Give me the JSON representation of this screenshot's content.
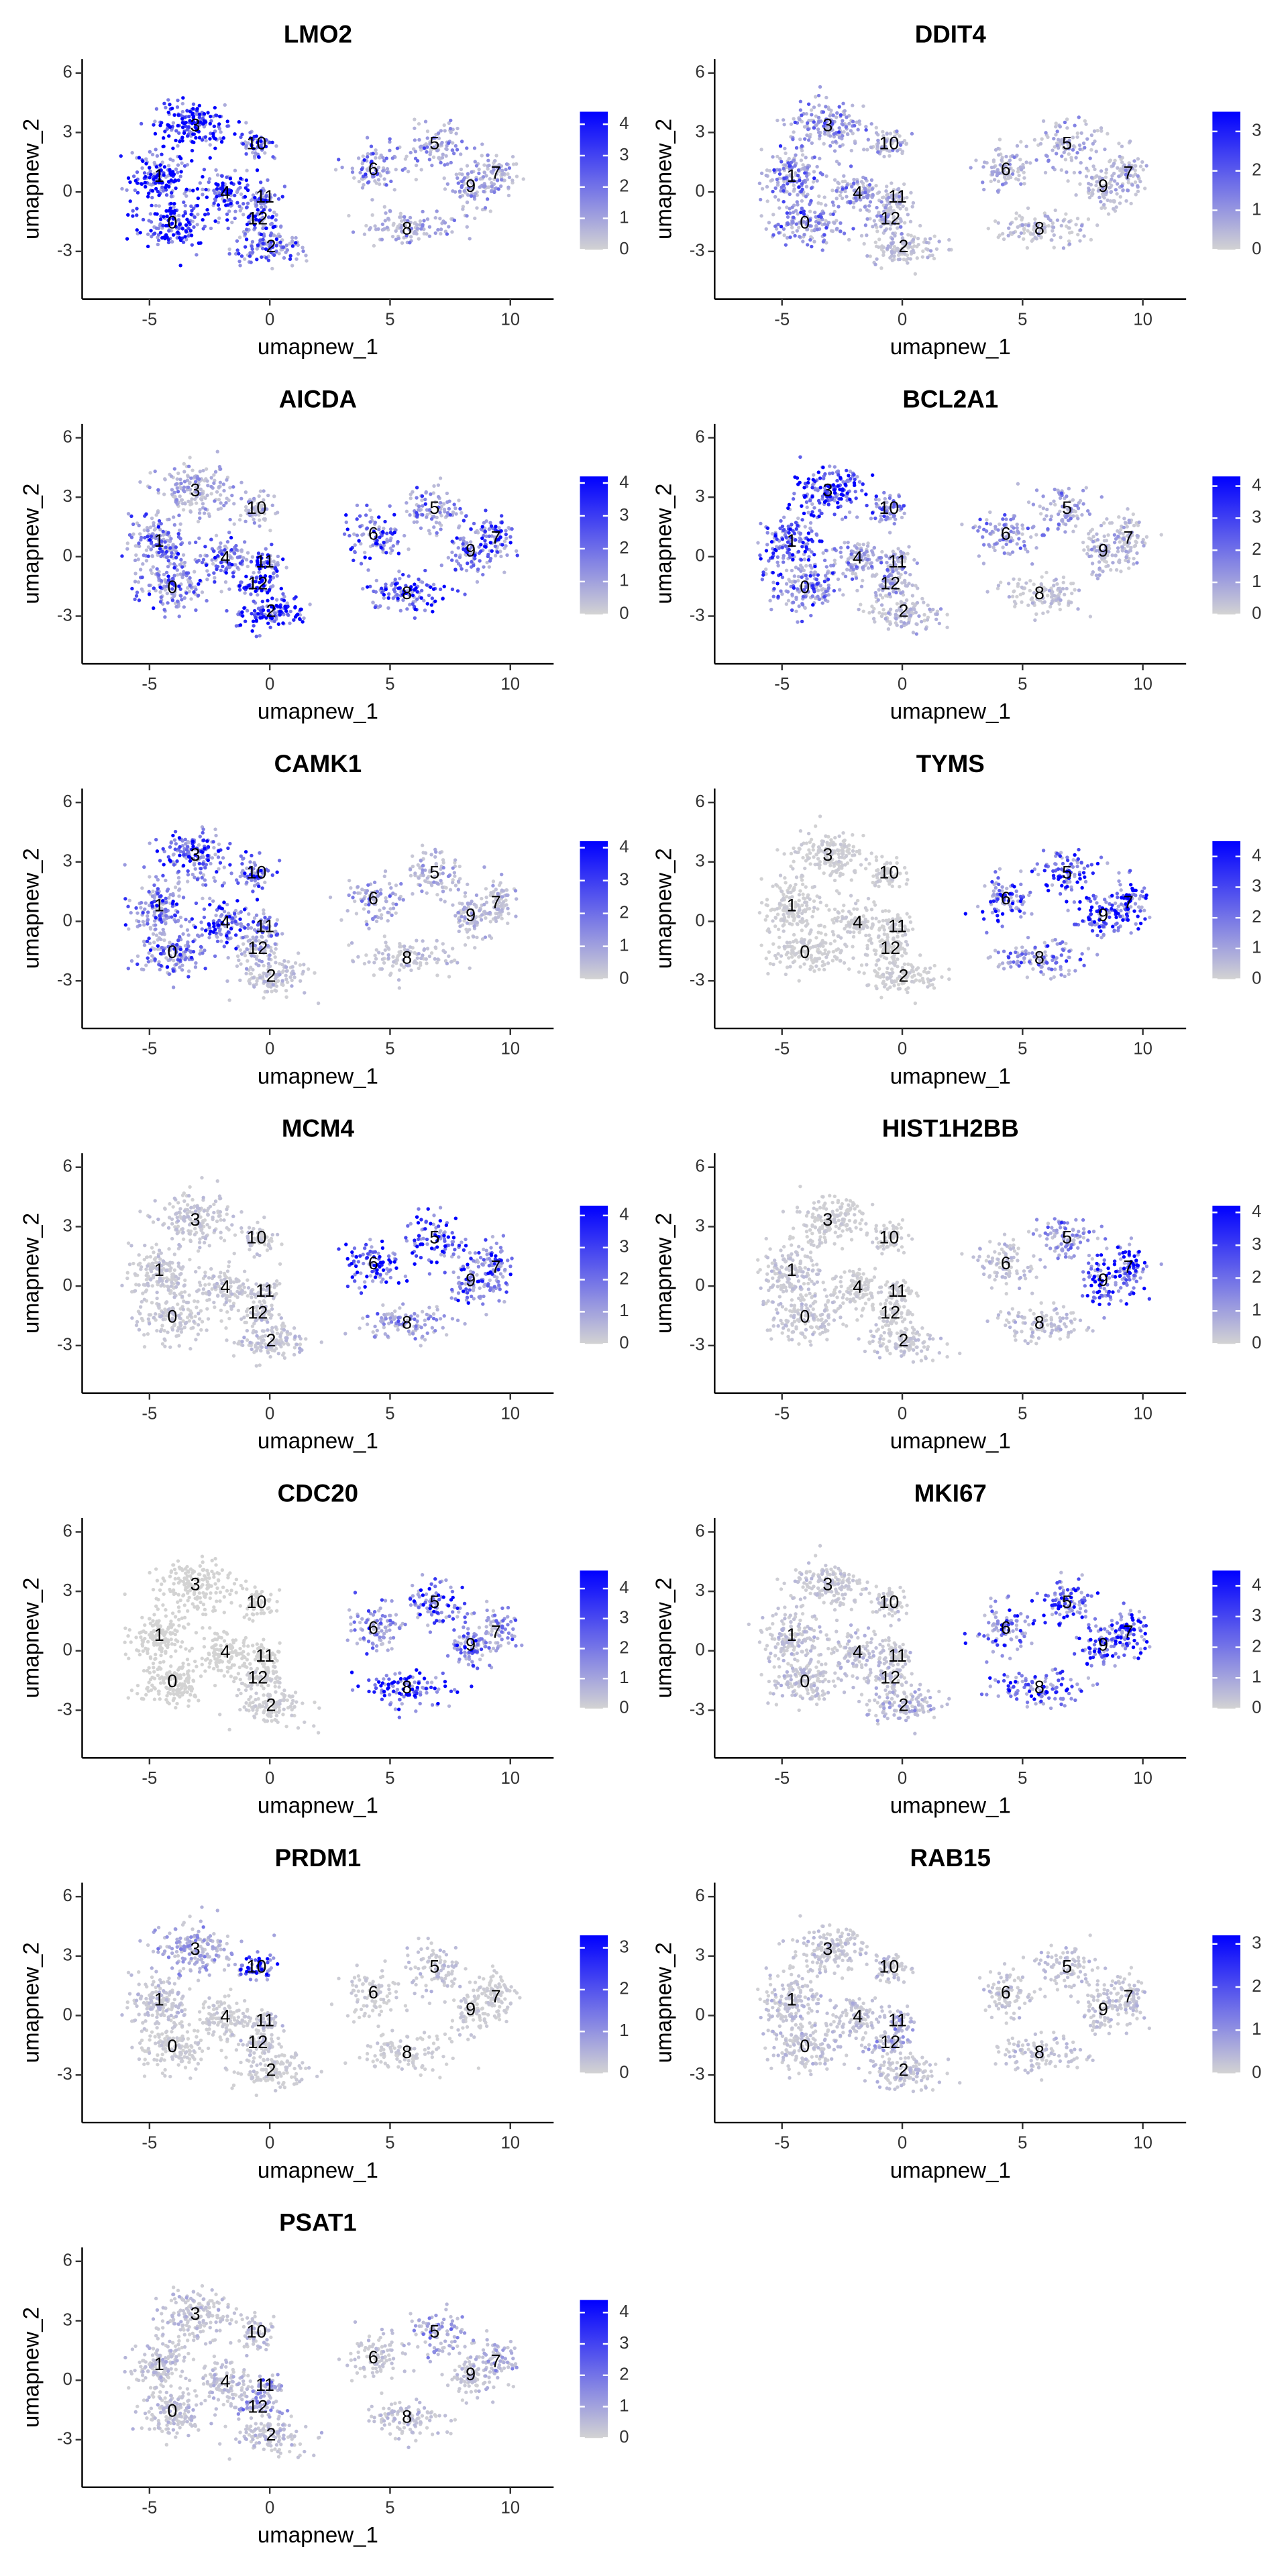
{
  "chart_data": [
    {
      "type": "scatter",
      "title": "LMO2",
      "xlabel": "umapnew_1",
      "ylabel": "umapnew_2",
      "xlim": [
        -7.8,
        11.8
      ],
      "ylim": [
        -5.4,
        6.7
      ],
      "xticks": [
        -5,
        0,
        5,
        10
      ],
      "yticks": [
        -3,
        0,
        3,
        6
      ],
      "point_labels": [
        "0",
        "1",
        "2",
        "3",
        "4",
        "5",
        "6",
        "7",
        "8",
        "9",
        "10",
        "11",
        "12"
      ],
      "x": [
        -4.05,
        -4.6,
        0.05,
        -3.1,
        -1.85,
        6.85,
        4.3,
        9.4,
        5.7,
        8.35,
        -0.55,
        -0.2,
        -0.5
      ],
      "y": [
        -1.6,
        0.75,
        -2.8,
        3.3,
        -0.1,
        2.4,
        1.1,
        0.9,
        -1.9,
        0.25,
        2.4,
        -0.3,
        -1.4
      ],
      "values": [
        3.5,
        3.5,
        1.5,
        4,
        3,
        1,
        1.2,
        0.8,
        0.8,
        0.8,
        2.5,
        2,
        2
      ],
      "colorbar": {
        "lim": [
          0,
          4.4
        ],
        "ticks": [
          0,
          1,
          2,
          3,
          4
        ],
        "colors": [
          "#d3d3d3",
          "#0000ff"
        ]
      }
    },
    {
      "type": "scatter",
      "title": "DDIT4",
      "xlabel": "umapnew_1",
      "ylabel": "umapnew_2",
      "xlim": [
        -7.8,
        11.8
      ],
      "ylim": [
        -5.4,
        6.7
      ],
      "xticks": [
        -5,
        0,
        5,
        10
      ],
      "yticks": [
        -3,
        0,
        3,
        6
      ],
      "point_labels": [
        "0",
        "1",
        "2",
        "3",
        "4",
        "5",
        "6",
        "7",
        "8",
        "9",
        "10",
        "11",
        "12"
      ],
      "x": [
        -4.05,
        -4.6,
        0.05,
        -3.1,
        -1.85,
        6.85,
        4.3,
        9.4,
        5.7,
        8.35,
        -0.55,
        -0.2,
        -0.5
      ],
      "y": [
        -1.6,
        0.75,
        -2.8,
        3.3,
        -0.1,
        2.4,
        1.1,
        0.9,
        -1.9,
        0.25,
        2.4,
        -0.3,
        -1.4
      ],
      "values": [
        1,
        1,
        0.3,
        0.8,
        0.7,
        0.5,
        0.5,
        0.5,
        0.3,
        0.4,
        0.5,
        0.5,
        0.5
      ],
      "colorbar": {
        "lim": [
          0,
          3.5
        ],
        "ticks": [
          0,
          1,
          2,
          3
        ],
        "colors": [
          "#d3d3d3",
          "#0000ff"
        ]
      }
    },
    {
      "type": "scatter",
      "title": "AICDA",
      "xlabel": "umapnew_1",
      "ylabel": "umapnew_2",
      "xlim": [
        -7.8,
        11.8
      ],
      "ylim": [
        -5.4,
        6.7
      ],
      "xticks": [
        -5,
        0,
        5,
        10
      ],
      "yticks": [
        -3,
        0,
        3,
        6
      ],
      "point_labels": [
        "0",
        "1",
        "2",
        "3",
        "4",
        "5",
        "6",
        "7",
        "8",
        "9",
        "10",
        "11",
        "12"
      ],
      "x": [
        -4.05,
        -4.6,
        0.05,
        -3.1,
        -1.85,
        6.85,
        4.3,
        9.4,
        5.7,
        8.35,
        -0.55,
        -0.2,
        -0.5
      ],
      "y": [
        -1.6,
        0.75,
        -2.8,
        3.3,
        -0.1,
        2.4,
        1.1,
        0.9,
        -1.9,
        0.25,
        2.4,
        -0.3,
        -1.4
      ],
      "values": [
        1.5,
        1.5,
        3.5,
        0.6,
        1.5,
        1.2,
        2,
        2,
        3,
        2,
        0.5,
        2.5,
        3
      ],
      "colorbar": {
        "lim": [
          0,
          4.2
        ],
        "ticks": [
          0,
          1,
          2,
          3,
          4
        ],
        "colors": [
          "#d3d3d3",
          "#0000ff"
        ]
      }
    },
    {
      "type": "scatter",
      "title": "BCL2A1",
      "xlabel": "umapnew_1",
      "ylabel": "umapnew_2",
      "xlim": [
        -7.8,
        11.8
      ],
      "ylim": [
        -5.4,
        6.7
      ],
      "xticks": [
        -5,
        0,
        5,
        10
      ],
      "yticks": [
        -3,
        0,
        3,
        6
      ],
      "point_labels": [
        "0",
        "1",
        "2",
        "3",
        "4",
        "5",
        "6",
        "7",
        "8",
        "9",
        "10",
        "11",
        "12"
      ],
      "x": [
        -4.05,
        -4.6,
        0.05,
        -3.1,
        -1.85,
        6.85,
        4.3,
        9.4,
        5.7,
        8.35,
        -0.55,
        -0.2,
        -0.5
      ],
      "y": [
        -1.6,
        0.75,
        -2.8,
        3.3,
        -0.1,
        2.4,
        1.1,
        0.9,
        -1.9,
        0.25,
        2.4,
        -0.3,
        -1.4
      ],
      "values": [
        1.5,
        2,
        0.4,
        3.5,
        1,
        0.8,
        1,
        0.5,
        0.3,
        0.5,
        1.5,
        0.8,
        0.8
      ],
      "colorbar": {
        "lim": [
          0,
          4.3
        ],
        "ticks": [
          0,
          1,
          2,
          3,
          4
        ],
        "colors": [
          "#d3d3d3",
          "#0000ff"
        ]
      }
    },
    {
      "type": "scatter",
      "title": "CAMK1",
      "xlabel": "umapnew_1",
      "ylabel": "umapnew_2",
      "xlim": [
        -7.8,
        11.8
      ],
      "ylim": [
        -5.4,
        6.7
      ],
      "xticks": [
        -5,
        0,
        5,
        10
      ],
      "yticks": [
        -3,
        0,
        3,
        6
      ],
      "point_labels": [
        "0",
        "1",
        "2",
        "3",
        "4",
        "5",
        "6",
        "7",
        "8",
        "9",
        "10",
        "11",
        "12"
      ],
      "x": [
        -4.05,
        -4.6,
        0.05,
        -3.1,
        -1.85,
        6.85,
        4.3,
        9.4,
        5.7,
        8.35,
        -0.55,
        -0.2,
        -0.5
      ],
      "y": [
        -1.6,
        0.75,
        -2.8,
        3.3,
        -0.1,
        2.4,
        1.1,
        0.9,
        -1.9,
        0.25,
        2.4,
        -0.3,
        -1.4
      ],
      "values": [
        1.5,
        1.5,
        0.3,
        2,
        2.5,
        0.5,
        0.8,
        0.5,
        0.3,
        0.5,
        2,
        1,
        0.6
      ],
      "colorbar": {
        "lim": [
          0,
          4.2
        ],
        "ticks": [
          0,
          1,
          2,
          3,
          4
        ],
        "colors": [
          "#d3d3d3",
          "#0000ff"
        ]
      }
    },
    {
      "type": "scatter",
      "title": "TYMS",
      "xlabel": "umapnew_1",
      "ylabel": "umapnew_2",
      "xlim": [
        -7.8,
        11.8
      ],
      "ylim": [
        -5.4,
        6.7
      ],
      "xticks": [
        -5,
        0,
        5,
        10
      ],
      "yticks": [
        -3,
        0,
        3,
        6
      ],
      "point_labels": [
        "0",
        "1",
        "2",
        "3",
        "4",
        "5",
        "6",
        "7",
        "8",
        "9",
        "10",
        "11",
        "12"
      ],
      "x": [
        -4.05,
        -4.6,
        0.05,
        -3.1,
        -1.85,
        6.85,
        4.3,
        9.4,
        5.7,
        8.35,
        -0.55,
        -0.2,
        -0.5
      ],
      "y": [
        -1.6,
        0.75,
        -2.8,
        3.3,
        -0.1,
        2.4,
        1.1,
        0.9,
        -1.9,
        0.25,
        2.4,
        -0.3,
        -1.4
      ],
      "values": [
        0.1,
        0.1,
        0.1,
        0.1,
        0.1,
        2.5,
        2.5,
        3,
        1.5,
        3,
        0.1,
        0.1,
        0.1
      ],
      "colorbar": {
        "lim": [
          0,
          4.5
        ],
        "ticks": [
          0,
          1,
          2,
          3,
          4
        ],
        "colors": [
          "#d3d3d3",
          "#0000ff"
        ]
      }
    },
    {
      "type": "scatter",
      "title": "MCM4",
      "xlabel": "umapnew_1",
      "ylabel": "umapnew_2",
      "xlim": [
        -7.8,
        11.8
      ],
      "ylim": [
        -5.4,
        6.7
      ],
      "xticks": [
        -5,
        0,
        5,
        10
      ],
      "yticks": [
        -3,
        0,
        3,
        6
      ],
      "point_labels": [
        "0",
        "1",
        "2",
        "3",
        "4",
        "5",
        "6",
        "7",
        "8",
        "9",
        "10",
        "11",
        "12"
      ],
      "x": [
        -4.05,
        -4.6,
        0.05,
        -3.1,
        -1.85,
        6.85,
        4.3,
        9.4,
        5.7,
        8.35,
        -0.55,
        -0.2,
        -0.5
      ],
      "y": [
        -1.6,
        0.75,
        -2.8,
        3.3,
        -0.1,
        2.4,
        1.1,
        0.9,
        -1.9,
        0.25,
        2.4,
        -0.3,
        -1.4
      ],
      "values": [
        0.2,
        0.2,
        0.3,
        0.2,
        0.2,
        3,
        3,
        2,
        1,
        2,
        0.2,
        0.2,
        0.2
      ],
      "colorbar": {
        "lim": [
          0,
          4.3
        ],
        "ticks": [
          0,
          1,
          2,
          3,
          4
        ],
        "colors": [
          "#d3d3d3",
          "#0000ff"
        ]
      }
    },
    {
      "type": "scatter",
      "title": "HIST1H2BB",
      "xlabel": "umapnew_1",
      "ylabel": "umapnew_2",
      "xlim": [
        -7.8,
        11.8
      ],
      "ylim": [
        -5.4,
        6.7
      ],
      "xticks": [
        -5,
        0,
        5,
        10
      ],
      "yticks": [
        -3,
        0,
        3,
        6
      ],
      "point_labels": [
        "0",
        "1",
        "2",
        "3",
        "4",
        "5",
        "6",
        "7",
        "8",
        "9",
        "10",
        "11",
        "12"
      ],
      "x": [
        -4.05,
        -4.6,
        0.05,
        -3.1,
        -1.85,
        6.85,
        4.3,
        9.4,
        5.7,
        8.35,
        -0.55,
        -0.2,
        -0.5
      ],
      "y": [
        -1.6,
        0.75,
        -2.8,
        3.3,
        -0.1,
        2.4,
        1.1,
        0.9,
        -1.9,
        0.25,
        2.4,
        -0.3,
        -1.4
      ],
      "values": [
        0.2,
        0.2,
        0.2,
        0.1,
        0.1,
        1,
        0.3,
        3.5,
        0.3,
        3,
        0.1,
        0.1,
        0.1
      ],
      "colorbar": {
        "lim": [
          0,
          4.2
        ],
        "ticks": [
          0,
          1,
          2,
          3,
          4
        ],
        "colors": [
          "#d3d3d3",
          "#0000ff"
        ]
      }
    },
    {
      "type": "scatter",
      "title": "CDC20",
      "xlabel": "umapnew_1",
      "ylabel": "umapnew_2",
      "xlim": [
        -7.8,
        11.8
      ],
      "ylim": [
        -5.4,
        6.7
      ],
      "xticks": [
        -5,
        0,
        5,
        10
      ],
      "yticks": [
        -3,
        0,
        3,
        6
      ],
      "point_labels": [
        "0",
        "1",
        "2",
        "3",
        "4",
        "5",
        "6",
        "7",
        "8",
        "9",
        "10",
        "11",
        "12"
      ],
      "x": [
        -4.05,
        -4.6,
        0.05,
        -3.1,
        -1.85,
        6.85,
        4.3,
        9.4,
        5.7,
        8.35,
        -0.55,
        -0.2,
        -0.5
      ],
      "y": [
        -1.6,
        0.75,
        -2.8,
        3.3,
        -0.1,
        2.4,
        1.1,
        0.9,
        -1.9,
        0.25,
        2.4,
        -0.3,
        -1.4
      ],
      "values": [
        0,
        0,
        0.1,
        0,
        0,
        2,
        1.5,
        1.2,
        3,
        2,
        0,
        0,
        0.1
      ],
      "colorbar": {
        "lim": [
          0,
          4.6
        ],
        "ticks": [
          0,
          1,
          2,
          3,
          4
        ],
        "colors": [
          "#d3d3d3",
          "#0000ff"
        ]
      }
    },
    {
      "type": "scatter",
      "title": "MKI67",
      "xlabel": "umapnew_1",
      "ylabel": "umapnew_2",
      "xlim": [
        -7.8,
        11.8
      ],
      "ylim": [
        -5.4,
        6.7
      ],
      "xticks": [
        -5,
        0,
        5,
        10
      ],
      "yticks": [
        -3,
        0,
        3,
        6
      ],
      "point_labels": [
        "0",
        "1",
        "2",
        "3",
        "4",
        "5",
        "6",
        "7",
        "8",
        "9",
        "10",
        "11",
        "12"
      ],
      "x": [
        -4.05,
        -4.6,
        0.05,
        -3.1,
        -1.85,
        6.85,
        4.3,
        9.4,
        5.7,
        8.35,
        -0.55,
        -0.2,
        -0.5
      ],
      "y": [
        -1.6,
        0.75,
        -2.8,
        3.3,
        -0.1,
        2.4,
        1.1,
        0.9,
        -1.9,
        0.25,
        2.4,
        -0.3,
        -1.4
      ],
      "values": [
        0.3,
        0.3,
        0.5,
        0.2,
        0.3,
        2.5,
        2,
        3,
        2.5,
        3,
        0.2,
        0.3,
        0.3
      ],
      "colorbar": {
        "lim": [
          0,
          4.5
        ],
        "ticks": [
          0,
          1,
          2,
          3,
          4
        ],
        "colors": [
          "#d3d3d3",
          "#0000ff"
        ]
      }
    },
    {
      "type": "scatter",
      "title": "PRDM1",
      "xlabel": "umapnew_1",
      "ylabel": "umapnew_2",
      "xlim": [
        -7.8,
        11.8
      ],
      "ylim": [
        -5.4,
        6.7
      ],
      "xticks": [
        -5,
        0,
        5,
        10
      ],
      "yticks": [
        -3,
        0,
        3,
        6
      ],
      "point_labels": [
        "0",
        "1",
        "2",
        "3",
        "4",
        "5",
        "6",
        "7",
        "8",
        "9",
        "10",
        "11",
        "12"
      ],
      "x": [
        -4.05,
        -4.6,
        0.05,
        -3.1,
        -1.85,
        6.85,
        4.3,
        9.4,
        5.7,
        8.35,
        -0.55,
        -0.2,
        -0.5
      ],
      "y": [
        -1.6,
        0.75,
        -2.8,
        3.3,
        -0.1,
        2.4,
        1.1,
        0.9,
        -1.9,
        0.25,
        2.4,
        -0.3,
        -1.4
      ],
      "values": [
        0.1,
        0.2,
        0.1,
        0.5,
        0.1,
        0.2,
        0.1,
        0.1,
        0.1,
        0.1,
        2,
        0.2,
        0.2
      ],
      "colorbar": {
        "lim": [
          0,
          3.3
        ],
        "ticks": [
          0,
          1,
          2,
          3
        ],
        "colors": [
          "#d3d3d3",
          "#0000ff"
        ]
      }
    },
    {
      "type": "scatter",
      "title": "RAB15",
      "xlabel": "umapnew_1",
      "ylabel": "umapnew_2",
      "xlim": [
        -7.8,
        11.8
      ],
      "ylim": [
        -5.4,
        6.7
      ],
      "xticks": [
        -5,
        0,
        5,
        10
      ],
      "yticks": [
        -3,
        0,
        3,
        6
      ],
      "point_labels": [
        "0",
        "1",
        "2",
        "3",
        "4",
        "5",
        "6",
        "7",
        "8",
        "9",
        "10",
        "11",
        "12"
      ],
      "x": [
        -4.05,
        -4.6,
        0.05,
        -3.1,
        -1.85,
        6.85,
        4.3,
        9.4,
        5.7,
        8.35,
        -0.55,
        -0.2,
        -0.5
      ],
      "y": [
        -1.6,
        0.75,
        -2.8,
        3.3,
        -0.1,
        2.4,
        1.1,
        0.9,
        -1.9,
        0.25,
        2.4,
        -0.3,
        -1.4
      ],
      "values": [
        0.2,
        0.2,
        0.2,
        0.2,
        0.2,
        0.2,
        0.2,
        0.2,
        0.2,
        0.2,
        0.2,
        0.5,
        0.5
      ],
      "colorbar": {
        "lim": [
          0,
          3.2
        ],
        "ticks": [
          0,
          1,
          2,
          3
        ],
        "colors": [
          "#d3d3d3",
          "#0000ff"
        ]
      }
    },
    {
      "type": "scatter",
      "title": "PSAT1",
      "xlabel": "umapnew_1",
      "ylabel": "umapnew_2",
      "xlim": [
        -7.8,
        11.8
      ],
      "ylim": [
        -5.4,
        6.7
      ],
      "xticks": [
        -5,
        0,
        5,
        10
      ],
      "yticks": [
        -3,
        0,
        3,
        6
      ],
      "point_labels": [
        "0",
        "1",
        "2",
        "3",
        "4",
        "5",
        "6",
        "7",
        "8",
        "9",
        "10",
        "11",
        "12"
      ],
      "x": [
        -4.05,
        -4.6,
        0.05,
        -3.1,
        -1.85,
        6.85,
        4.3,
        9.4,
        5.7,
        8.35,
        -0.55,
        -0.2,
        -0.5
      ],
      "y": [
        -1.6,
        0.75,
        -2.8,
        3.3,
        -0.1,
        2.4,
        1.1,
        0.9,
        -1.9,
        0.25,
        2.4,
        -0.3,
        -1.4
      ],
      "values": [
        0.3,
        0.3,
        0.3,
        0.3,
        0.3,
        0.8,
        0.3,
        0.6,
        0.3,
        0.3,
        0.3,
        1,
        0.8
      ],
      "colorbar": {
        "lim": [
          0,
          4.4
        ],
        "ticks": [
          0,
          1,
          2,
          3,
          4
        ],
        "colors": [
          "#d3d3d3",
          "#0000ff"
        ]
      }
    }
  ]
}
